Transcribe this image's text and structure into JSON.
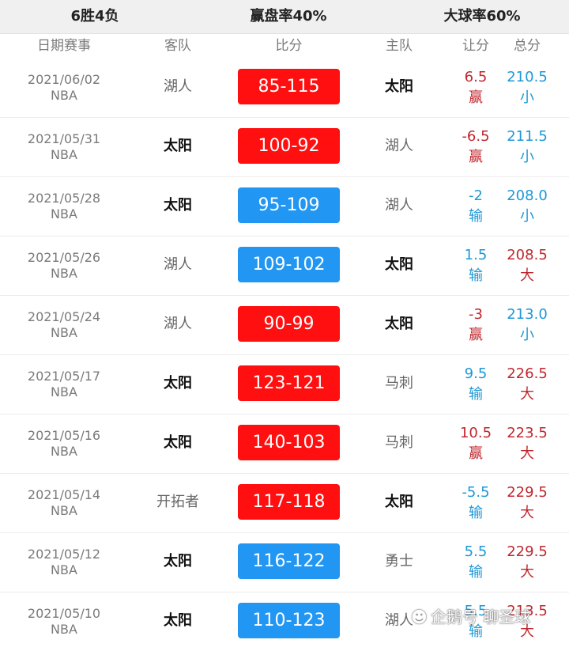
{
  "summary": {
    "record": "6胜4负",
    "cover_rate": "赢盘率40%",
    "over_rate": "大球率60%"
  },
  "columns": {
    "date_event": "日期赛事",
    "away": "客队",
    "score": "比分",
    "home": "主队",
    "spread": "让分",
    "total": "总分"
  },
  "colors": {
    "win_red": "#ff0f0f",
    "loss_blue": "#2196f3",
    "text_red": "#c0272d",
    "text_blue": "#1e98d6",
    "cell_text": "#ffffff"
  },
  "games": [
    {
      "date": "2021/06/02",
      "league": "NBA",
      "away": "湖人",
      "score": "85-115",
      "home": "太阳",
      "spread": "6.5",
      "spread_result": "赢",
      "total": "210.5",
      "total_result": "小",
      "highlight": "home",
      "score_color": "red",
      "spread_color": "red",
      "total_color": "blue"
    },
    {
      "date": "2021/05/31",
      "league": "NBA",
      "away": "太阳",
      "score": "100-92",
      "home": "湖人",
      "spread": "-6.5",
      "spread_result": "赢",
      "total": "211.5",
      "total_result": "小",
      "highlight": "away",
      "score_color": "red",
      "spread_color": "red",
      "total_color": "blue"
    },
    {
      "date": "2021/05/28",
      "league": "NBA",
      "away": "太阳",
      "score": "95-109",
      "home": "湖人",
      "spread": "-2",
      "spread_result": "输",
      "total": "208.0",
      "total_result": "小",
      "highlight": "away",
      "score_color": "blue",
      "spread_color": "blue",
      "total_color": "blue"
    },
    {
      "date": "2021/05/26",
      "league": "NBA",
      "away": "湖人",
      "score": "109-102",
      "home": "太阳",
      "spread": "1.5",
      "spread_result": "输",
      "total": "208.5",
      "total_result": "大",
      "highlight": "home",
      "score_color": "blue",
      "spread_color": "blue",
      "total_color": "red"
    },
    {
      "date": "2021/05/24",
      "league": "NBA",
      "away": "湖人",
      "score": "90-99",
      "home": "太阳",
      "spread": "-3",
      "spread_result": "赢",
      "total": "213.0",
      "total_result": "小",
      "highlight": "home",
      "score_color": "red",
      "spread_color": "red",
      "total_color": "blue"
    },
    {
      "date": "2021/05/17",
      "league": "NBA",
      "away": "太阳",
      "score": "123-121",
      "home": "马刺",
      "spread": "9.5",
      "spread_result": "输",
      "total": "226.5",
      "total_result": "大",
      "highlight": "away",
      "score_color": "red",
      "spread_color": "blue",
      "total_color": "red"
    },
    {
      "date": "2021/05/16",
      "league": "NBA",
      "away": "太阳",
      "score": "140-103",
      "home": "马刺",
      "spread": "10.5",
      "spread_result": "赢",
      "total": "223.5",
      "total_result": "大",
      "highlight": "away",
      "score_color": "red",
      "spread_color": "red",
      "total_color": "red"
    },
    {
      "date": "2021/05/14",
      "league": "NBA",
      "away": "开拓者",
      "score": "117-118",
      "home": "太阳",
      "spread": "-5.5",
      "spread_result": "输",
      "total": "229.5",
      "total_result": "大",
      "highlight": "home",
      "score_color": "red",
      "spread_color": "blue",
      "total_color": "red"
    },
    {
      "date": "2021/05/12",
      "league": "NBA",
      "away": "太阳",
      "score": "116-122",
      "home": "勇士",
      "spread": "5.5",
      "spread_result": "输",
      "total": "229.5",
      "total_result": "大",
      "highlight": "away",
      "score_color": "blue",
      "spread_color": "blue",
      "total_color": "red"
    },
    {
      "date": "2021/05/10",
      "league": "NBA",
      "away": "太阳",
      "score": "110-123",
      "home": "湖人",
      "spread": "5.5",
      "spread_result": "输",
      "total": "213.5",
      "total_result": "大",
      "highlight": "away",
      "score_color": "blue",
      "spread_color": "blue",
      "total_color": "red"
    }
  ],
  "watermark": {
    "icon": "penguin-icon",
    "text": "企鹅号 聊圣球"
  }
}
